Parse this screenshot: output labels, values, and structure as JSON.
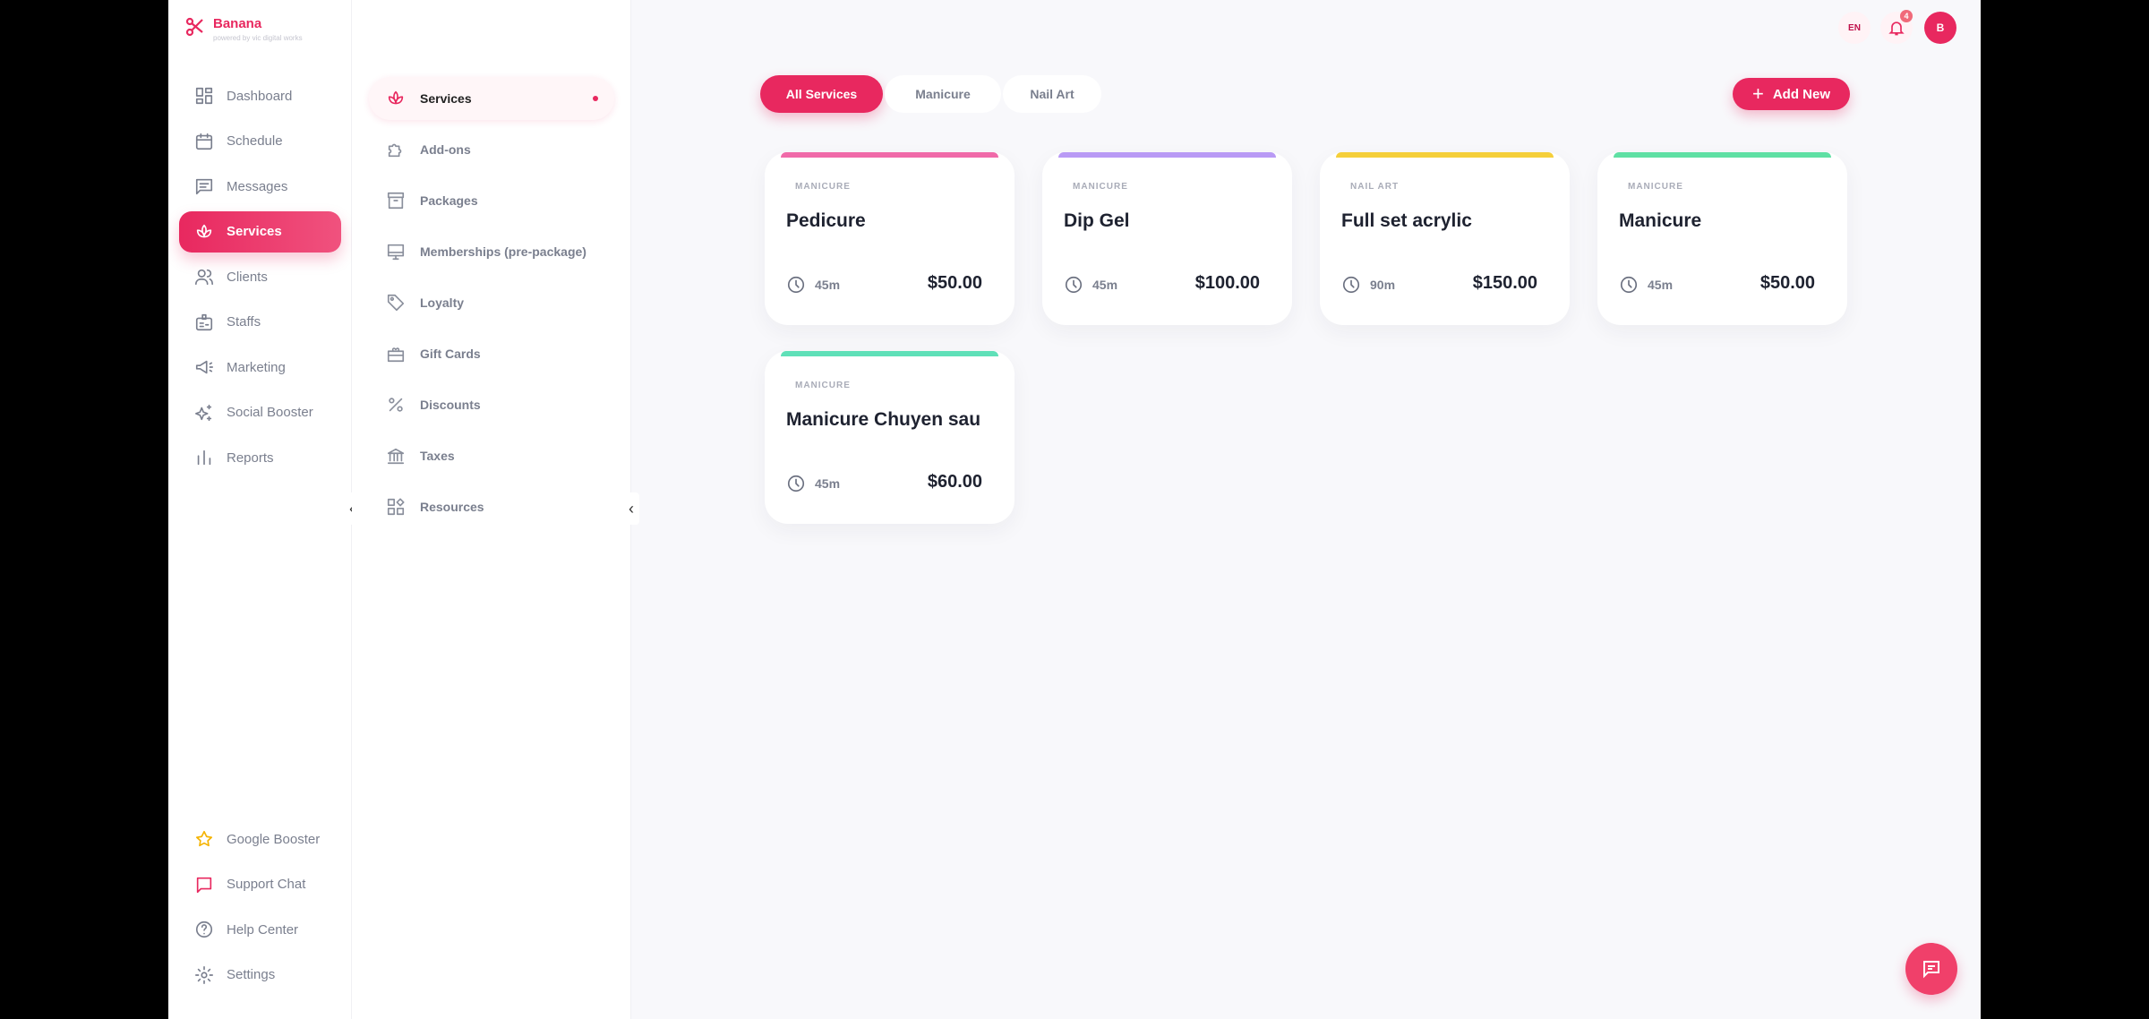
{
  "brand": {
    "name": "Banana",
    "tagline": "powered by vic digital works",
    "accent": "#e8285f"
  },
  "sidebar": {
    "items": [
      {
        "label": "Dashboard",
        "icon": "dashboard-icon"
      },
      {
        "label": "Schedule",
        "icon": "calendar-icon"
      },
      {
        "label": "Messages",
        "icon": "message-icon"
      },
      {
        "label": "Services",
        "icon": "lotus-icon",
        "active": true
      },
      {
        "label": "Clients",
        "icon": "users-icon"
      },
      {
        "label": "Staffs",
        "icon": "badge-icon"
      },
      {
        "label": "Marketing",
        "icon": "megaphone-icon"
      },
      {
        "label": "Social Booster",
        "icon": "sparkle-icon"
      },
      {
        "label": "Reports",
        "icon": "bar-chart-icon"
      }
    ],
    "bottom": [
      {
        "label": "Google Booster",
        "icon": "star-icon"
      },
      {
        "label": "Support Chat",
        "icon": "chat-icon"
      },
      {
        "label": "Help Center",
        "icon": "help-icon"
      },
      {
        "label": "Settings",
        "icon": "gear-icon"
      }
    ]
  },
  "submenu": {
    "items": [
      {
        "label": "Services",
        "icon": "lotus-icon",
        "active": true
      },
      {
        "label": "Add-ons",
        "icon": "puzzle-icon"
      },
      {
        "label": "Packages",
        "icon": "box-icon"
      },
      {
        "label": "Memberships (pre-package)",
        "icon": "monitor-icon"
      },
      {
        "label": "Loyalty",
        "icon": "tag-icon"
      },
      {
        "label": "Gift Cards",
        "icon": "gift-icon"
      },
      {
        "label": "Discounts",
        "icon": "percent-icon"
      },
      {
        "label": "Taxes",
        "icon": "bank-icon"
      },
      {
        "label": "Resources",
        "icon": "resources-icon"
      }
    ]
  },
  "topbar": {
    "language": "EN",
    "notifications": "4",
    "avatar": "B"
  },
  "filters": [
    {
      "label": "All Services",
      "active": true
    },
    {
      "label": "Manicure"
    },
    {
      "label": "Nail Art"
    }
  ],
  "add_new": "Add New",
  "services": [
    {
      "category": "MANICURE",
      "name": "Pedicure",
      "duration": "45m",
      "price": "$50.00",
      "color": "#f06aa9"
    },
    {
      "category": "MANICURE",
      "name": "Dip Gel",
      "duration": "45m",
      "price": "$100.00",
      "color": "#b99af5"
    },
    {
      "category": "NAIL ART",
      "name": "Full set acrylic",
      "duration": "90m",
      "price": "$150.00",
      "color": "#f5cf3a"
    },
    {
      "category": "MANICURE",
      "name": "Manicure",
      "duration": "45m",
      "price": "$50.00",
      "color": "#5fe0a4"
    },
    {
      "category": "MANICURE",
      "name": "Manicure Chuyen sau",
      "duration": "45m",
      "price": "$60.00",
      "color": "#5fe0b8"
    }
  ]
}
